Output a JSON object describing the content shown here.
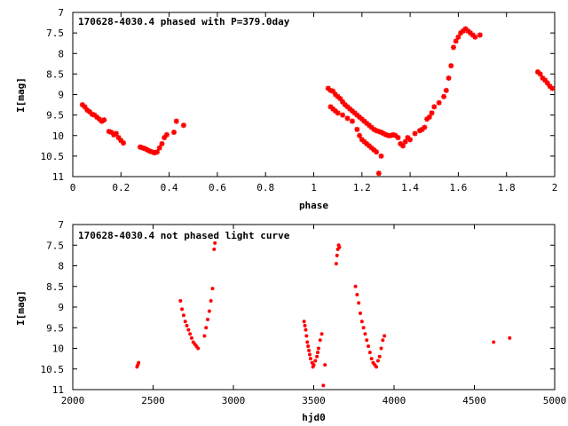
{
  "chart_data": [
    {
      "type": "scatter",
      "title": "170628-4030.4 phased with P=379.0day",
      "xlabel": "phase",
      "ylabel": "I[mag]",
      "xlim": [
        0,
        2
      ],
      "ylim": [
        11,
        7
      ],
      "y_inverted": true,
      "xticks": [
        "0",
        "0.2",
        "0.4",
        "0.6",
        "0.8",
        "1",
        "1.2",
        "1.4",
        "1.6",
        "1.8",
        "2"
      ],
      "yticks": [
        "7",
        "7.5",
        "8",
        "8.5",
        "9",
        "9.5",
        "10",
        "10.5",
        "11"
      ],
      "grid": false,
      "marker_color": "#ff0000",
      "series": [
        {
          "x": [
            0.04,
            0.05,
            0.06,
            0.07,
            0.08,
            0.09,
            0.1,
            0.11,
            0.12,
            0.13,
            0.15,
            0.16,
            0.17,
            0.18,
            0.19,
            0.2,
            0.21,
            0.28,
            0.29,
            0.3,
            0.31,
            0.32,
            0.33,
            0.34,
            0.35,
            0.36,
            0.37,
            0.38,
            0.39,
            0.42,
            0.43,
            0.46,
            1.06,
            1.07,
            1.08,
            1.09,
            1.1,
            1.11,
            1.12,
            1.13,
            1.14,
            1.15,
            1.16,
            1.17,
            1.18,
            1.19,
            1.2,
            1.21,
            1.22,
            1.23,
            1.24,
            1.25,
            1.26,
            1.27,
            1.28,
            1.29,
            1.3,
            1.31,
            1.32,
            1.33,
            1.34,
            1.35,
            1.36,
            1.37,
            1.38,
            1.39,
            1.07,
            1.08,
            1.09,
            1.1,
            1.12,
            1.14,
            1.16,
            1.18,
            1.19,
            1.2,
            1.21,
            1.22,
            1.23,
            1.24,
            1.25,
            1.26,
            1.27,
            1.28,
            1.4,
            1.42,
            1.44,
            1.45,
            1.46,
            1.47,
            1.48,
            1.49,
            1.5,
            1.52,
            1.54,
            1.55,
            1.56,
            1.57,
            1.58,
            1.59,
            1.6,
            1.61,
            1.62,
            1.63,
            1.64,
            1.65,
            1.66,
            1.67,
            1.69,
            1.93,
            1.94,
            1.95,
            1.96,
            1.97,
            1.98,
            1.99
          ],
          "y": [
            9.25,
            9.3,
            9.38,
            9.42,
            9.48,
            9.5,
            9.55,
            9.6,
            9.65,
            9.62,
            9.9,
            9.92,
            9.98,
            9.95,
            10.05,
            10.12,
            10.18,
            10.28,
            10.3,
            10.32,
            10.35,
            10.38,
            10.4,
            10.42,
            10.4,
            10.3,
            10.2,
            10.05,
            9.98,
            9.92,
            9.65,
            9.75,
            8.85,
            8.9,
            8.92,
            9.0,
            9.05,
            9.1,
            9.18,
            9.25,
            9.3,
            9.35,
            9.4,
            9.45,
            9.5,
            9.55,
            9.6,
            9.65,
            9.7,
            9.75,
            9.8,
            9.85,
            9.88,
            9.9,
            9.92,
            9.95,
            9.98,
            10.0,
            10.0,
            9.98,
            10.0,
            10.05,
            10.2,
            10.25,
            10.15,
            10.05,
            9.3,
            9.35,
            9.4,
            9.45,
            9.5,
            9.58,
            9.65,
            9.85,
            10.0,
            10.1,
            10.15,
            10.2,
            10.25,
            10.3,
            10.35,
            10.4,
            10.92,
            10.5,
            10.1,
            9.95,
            9.88,
            9.85,
            9.8,
            9.6,
            9.55,
            9.45,
            9.3,
            9.2,
            9.05,
            8.9,
            8.6,
            8.3,
            7.85,
            7.7,
            7.6,
            7.5,
            7.45,
            7.4,
            7.45,
            7.5,
            7.55,
            7.6,
            7.55,
            8.45,
            8.5,
            8.6,
            8.65,
            8.72,
            8.8,
            8.85
          ]
        }
      ]
    },
    {
      "type": "scatter",
      "title": "170628-4030.4 not phased light curve",
      "xlabel": "hjd0",
      "ylabel": "I[mag]",
      "xlim": [
        2000,
        5000
      ],
      "ylim": [
        11,
        7
      ],
      "y_inverted": true,
      "xticks": [
        "2000",
        "2500",
        "3000",
        "3500",
        "4000",
        "4500",
        "5000"
      ],
      "yticks": [
        "7",
        "7.5",
        "8",
        "8.5",
        "9",
        "9.5",
        "10",
        "10.5",
        "11"
      ],
      "grid": false,
      "marker_color": "#ff0000",
      "series": [
        {
          "x": [
            2400,
            2405,
            2410,
            2670,
            2680,
            2690,
            2700,
            2710,
            2720,
            2730,
            2740,
            2750,
            2760,
            2770,
            2780,
            2820,
            2830,
            2840,
            2850,
            2860,
            2870,
            2880,
            2885,
            3440,
            3445,
            3450,
            3455,
            3460,
            3465,
            3470,
            3475,
            3480,
            3490,
            3495,
            3500,
            3510,
            3520,
            3525,
            3530,
            3540,
            3550,
            3560,
            3570,
            3640,
            3645,
            3650,
            3655,
            3660,
            3760,
            3770,
            3780,
            3790,
            3800,
            3810,
            3820,
            3830,
            3840,
            3850,
            3860,
            3870,
            3880,
            3890,
            3900,
            3910,
            3920,
            3930,
            3940,
            4620,
            4720
          ],
          "y": [
            10.45,
            10.4,
            10.35,
            8.85,
            9.05,
            9.2,
            9.35,
            9.45,
            9.55,
            9.65,
            9.75,
            9.85,
            9.9,
            9.95,
            10.0,
            9.7,
            9.5,
            9.3,
            9.1,
            8.85,
            8.55,
            7.6,
            7.45,
            9.35,
            9.45,
            9.55,
            9.7,
            9.85,
            9.95,
            10.05,
            10.15,
            10.25,
            10.35,
            10.45,
            10.4,
            10.3,
            10.2,
            10.1,
            10.0,
            9.8,
            9.65,
            10.9,
            10.4,
            7.95,
            7.75,
            7.6,
            7.5,
            7.55,
            8.5,
            8.7,
            8.9,
            9.15,
            9.35,
            9.5,
            9.65,
            9.8,
            9.95,
            10.1,
            10.25,
            10.35,
            10.4,
            10.45,
            10.3,
            10.2,
            10.0,
            9.8,
            9.7,
            9.85,
            9.75
          ]
        }
      ]
    }
  ]
}
